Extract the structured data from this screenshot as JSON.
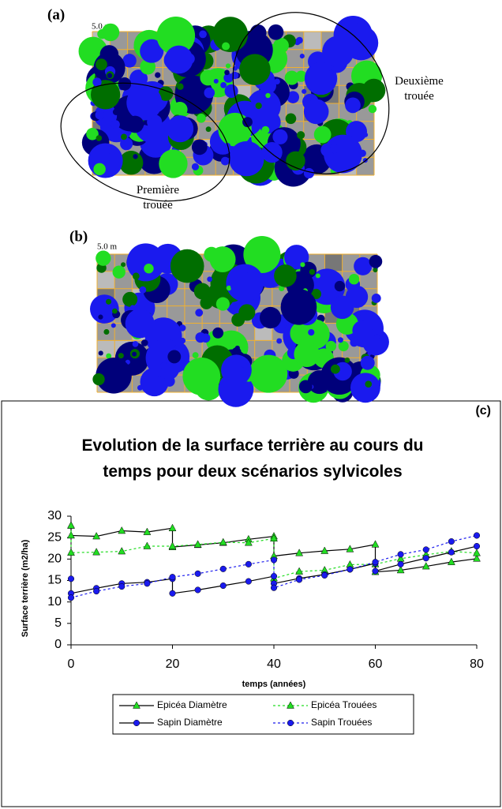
{
  "panels": {
    "a": {
      "label": "(a)",
      "scale": "5.0 m",
      "annotations": [
        "Deuxième trouée",
        "Première trouée"
      ]
    },
    "b": {
      "label": "(b)",
      "scale": "5.0 m"
    }
  },
  "chart_data": {
    "type": "line",
    "panel_label": "(c)",
    "title": "Evolution de la surface terrière au cours du temps pour deux scénarios sylvicoles",
    "x_label": "temps (années)",
    "y_label": "Surface terrière (m2/ha)",
    "xlim": [
      0,
      80
    ],
    "xticks": [
      0,
      20,
      40,
      60,
      80
    ],
    "ylim": [
      0,
      30
    ],
    "yticks": [
      0,
      5,
      10,
      15,
      20,
      25,
      30
    ],
    "series": [
      {
        "name": "Epicéa Diamètre",
        "color": "#22dd22",
        "line_color": "#000000",
        "dashed": false,
        "marker": "triangle",
        "x": [
          0,
          0,
          5,
          10,
          15,
          20,
          20,
          25,
          30,
          35,
          40,
          40,
          45,
          50,
          55,
          60,
          60,
          65,
          70,
          75,
          80
        ],
        "values": [
          27.8,
          25.5,
          25.3,
          26.6,
          26.3,
          27.2,
          22.8,
          23.3,
          23.8,
          24.6,
          25.3,
          20.7,
          21.4,
          21.9,
          22.3,
          23.4,
          17.0,
          17.4,
          18.3,
          19.3,
          20.1
        ]
      },
      {
        "name": "Epicéa Trouées",
        "color": "#22dd22",
        "line_color": "#22dd22",
        "dashed": true,
        "marker": "triangle",
        "x": [
          0,
          0,
          5,
          10,
          15,
          20,
          25,
          30,
          35,
          40,
          40,
          45,
          50,
          55,
          60,
          65,
          70,
          75,
          80
        ],
        "values": [
          27.8,
          21.5,
          21.6,
          21.8,
          23.0,
          23.0,
          23.4,
          23.9,
          23.8,
          24.8,
          15.5,
          17.1,
          17.4,
          18.7,
          18.8,
          20.1,
          21.0,
          21.8,
          21.4
        ]
      },
      {
        "name": "Sapin Diamètre",
        "color": "#1a1aee",
        "line_color": "#000000",
        "dashed": false,
        "marker": "circle",
        "x": [
          0,
          0,
          5,
          10,
          15,
          20,
          20,
          25,
          30,
          35,
          40,
          40,
          45,
          50,
          55,
          60,
          60,
          65,
          70,
          75,
          80
        ],
        "values": [
          15.4,
          12.0,
          13.2,
          14.3,
          14.6,
          15.4,
          12.0,
          12.8,
          13.8,
          14.8,
          16.0,
          14.3,
          15.5,
          16.4,
          17.6,
          19.0,
          17.2,
          18.8,
          20.2,
          21.6,
          23.0
        ]
      },
      {
        "name": "Sapin Trouées",
        "color": "#1a1aee",
        "line_color": "#1a1aee",
        "dashed": true,
        "marker": "circle",
        "x": [
          0,
          5,
          10,
          15,
          20,
          25,
          30,
          35,
          40,
          40,
          45,
          50,
          55,
          60,
          65,
          70,
          75,
          80
        ],
        "values": [
          11.0,
          12.5,
          13.6,
          14.3,
          15.8,
          16.6,
          17.7,
          18.8,
          19.8,
          13.3,
          15.2,
          16.2,
          17.6,
          19.3,
          21.1,
          22.2,
          24.1,
          25.5
        ]
      }
    ]
  }
}
